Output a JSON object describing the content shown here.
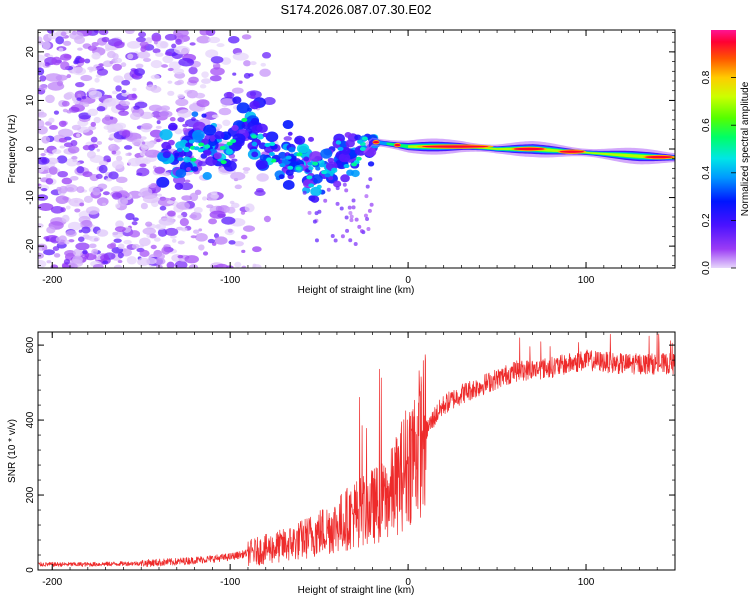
{
  "title": "S174.2026.087.07.30.E02",
  "colors": {
    "snr_line": "#ee2b2b",
    "frame": "#000000",
    "background": "#ffffff"
  },
  "chart_data": [
    {
      "type": "heatmap",
      "name": "spectrogram",
      "xlabel": "Height of straight line (km)",
      "ylabel": "Frequency (Hz)",
      "xlim": [
        -208,
        150
      ],
      "ylim": [
        -24.5,
        24.5
      ],
      "xticks": [
        -200,
        -100,
        0,
        100
      ],
      "xtick_labels": [
        "-200",
        "-100",
        "0",
        "100"
      ],
      "yticks": [
        -20,
        -10,
        0,
        10,
        20
      ],
      "ytick_labels": [
        "-20",
        "-10",
        "0",
        "10",
        "20"
      ],
      "colorbar": {
        "label": "Normalized spectral amplitude",
        "range": [
          0,
          1
        ],
        "ticks": [
          0,
          0.2,
          0.4,
          0.6,
          0.8
        ],
        "tick_labels": [
          "0.0",
          "0.2",
          "0.4",
          "0.6",
          "0.8"
        ]
      },
      "ridge": [
        {
          "x": -135,
          "y": -1.5
        },
        {
          "x": -120,
          "y": -0.5
        },
        {
          "x": -100,
          "y": 0.5
        },
        {
          "x": -90,
          "y": 6
        },
        {
          "x": -80,
          "y": -1
        },
        {
          "x": -60,
          "y": -2
        },
        {
          "x": -50,
          "y": -5
        },
        {
          "x": -40,
          "y": -3
        },
        {
          "x": -30,
          "y": -1.5
        },
        {
          "x": -20,
          "y": 1.5
        },
        {
          "x": -10,
          "y": 1
        },
        {
          "x": 0,
          "y": 0.5
        },
        {
          "x": 10,
          "y": 0.5
        },
        {
          "x": 30,
          "y": 0.5
        },
        {
          "x": 50,
          "y": 0
        },
        {
          "x": 70,
          "y": 0
        },
        {
          "x": 90,
          "y": -0.5
        },
        {
          "x": 110,
          "y": -1
        },
        {
          "x": 130,
          "y": -1.5
        },
        {
          "x": 150,
          "y": -1.8
        }
      ]
    },
    {
      "type": "line",
      "name": "snr",
      "xlabel": "Height of straight line (km)",
      "ylabel": "SNR (10 * v/v)",
      "xlim": [
        -208,
        150
      ],
      "ylim": [
        0,
        635
      ],
      "xticks": [
        -200,
        -100,
        0,
        100
      ],
      "xtick_labels": [
        "-200",
        "-100",
        "0",
        "100"
      ],
      "yticks": [
        0,
        200,
        400,
        600
      ],
      "ytick_labels": [
        "0",
        "200",
        "400",
        "600"
      ],
      "trend": {
        "x": [
          -208,
          -180,
          -150,
          -130,
          -110,
          -100,
          -90,
          -80,
          -70,
          -60,
          -50,
          -40,
          -30,
          -20,
          -15,
          -10,
          -5,
          0,
          5,
          10,
          15,
          20,
          30,
          40,
          50,
          60,
          80,
          100,
          120,
          150
        ],
        "y": [
          15,
          15,
          18,
          22,
          30,
          35,
          45,
          55,
          65,
          80,
          100,
          120,
          150,
          170,
          180,
          200,
          240,
          290,
          330,
          370,
          410,
          440,
          470,
          490,
          510,
          530,
          540,
          560,
          550,
          550
        ]
      }
    }
  ]
}
